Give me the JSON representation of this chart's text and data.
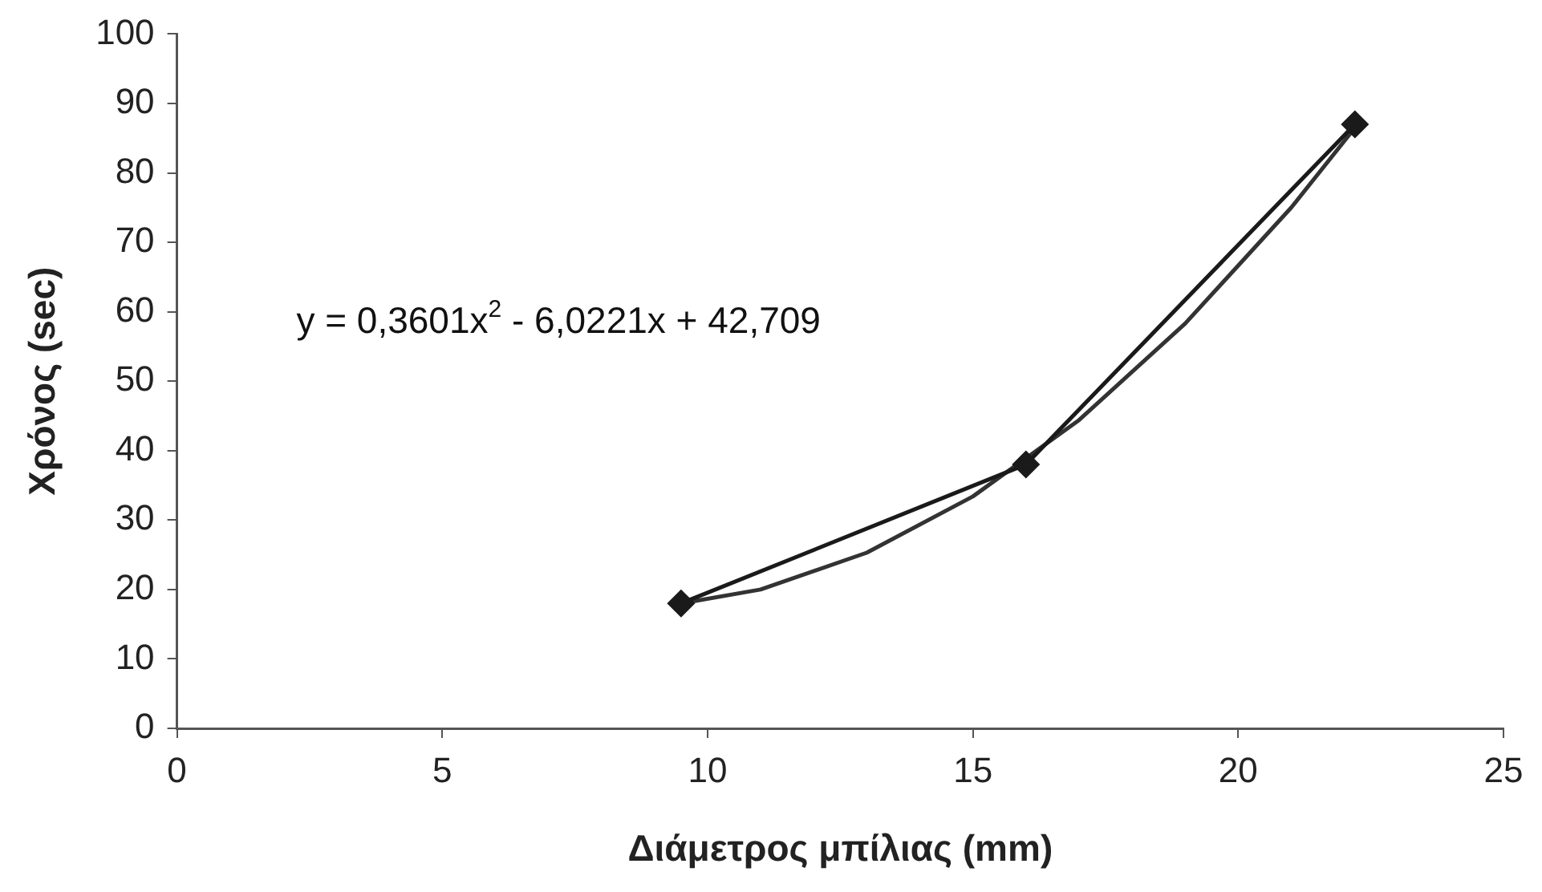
{
  "chart_data": {
    "type": "line",
    "xlabel": "Διάμετρος μπίλιας (mm)",
    "ylabel": "Χρόνος (sec)",
    "xlim": [
      0,
      25
    ],
    "xticks": [
      0,
      5,
      10,
      15,
      20,
      25
    ],
    "ylim": [
      0,
      100
    ],
    "yticks": [
      0,
      10,
      20,
      30,
      40,
      50,
      60,
      70,
      80,
      90,
      100
    ],
    "grid": false,
    "legend": false,
    "marker": "diamond",
    "line_style": "solid",
    "series": [
      {
        "color": "#1a1a1a",
        "x": [
          9.5,
          16,
          22.2
        ],
        "values": [
          18,
          38,
          87
        ]
      },
      {
        "type": "line",
        "marker": "none",
        "color": "#333333",
        "x": [
          9.5,
          11,
          13,
          15,
          17,
          19,
          21,
          22.2
        ],
        "values": [
          18,
          20,
          25.3,
          33.4,
          44.4,
          58.3,
          75,
          86.5
        ]
      }
    ],
    "annotations": [
      "y = 0,3601x$^{2}$ - 6,0221x + 42,709"
    ]
  }
}
